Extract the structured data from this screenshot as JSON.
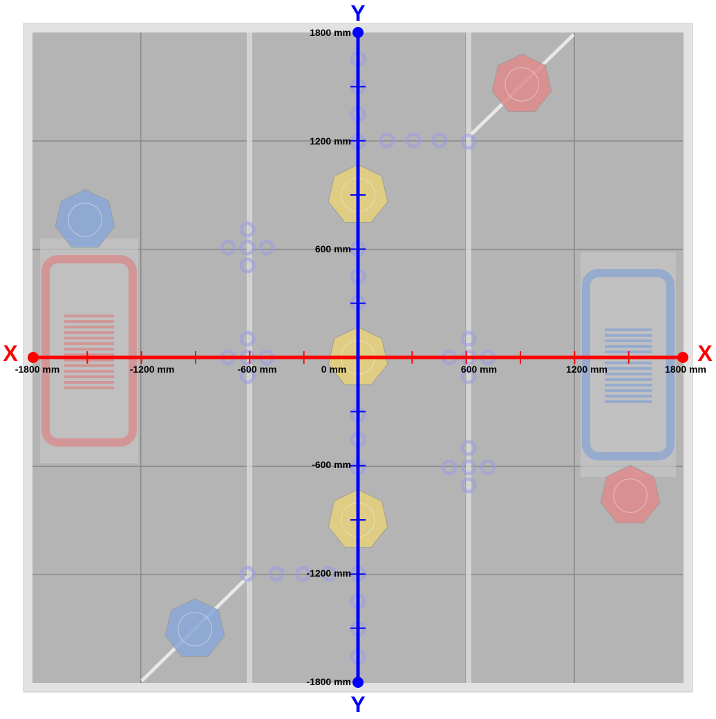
{
  "axes": {
    "x": {
      "letter": "X",
      "color": "#ff0000",
      "range_mm": [
        -1800,
        1800
      ],
      "tick_step_mm": 300,
      "labels": [
        "-1800 mm",
        "-1200 mm",
        "-600 mm",
        "0 mm",
        "600 mm",
        "1200 mm",
        "1800 mm"
      ]
    },
    "y": {
      "letter": "Y",
      "color": "#0000ff",
      "range_mm": [
        -1800,
        1800
      ],
      "tick_step_mm": 300,
      "labels": [
        "1800 mm",
        "1200 mm",
        "600 mm",
        "-600 mm",
        "-1200 mm",
        "-1800 mm"
      ]
    }
  },
  "field": {
    "tile_color": "#b4b4b4",
    "red_alliance": "#e08a8a",
    "blue_alliance": "#8aa8d8",
    "goal_color": "#e6d27a",
    "ring_color": "#9c9ce0"
  }
}
